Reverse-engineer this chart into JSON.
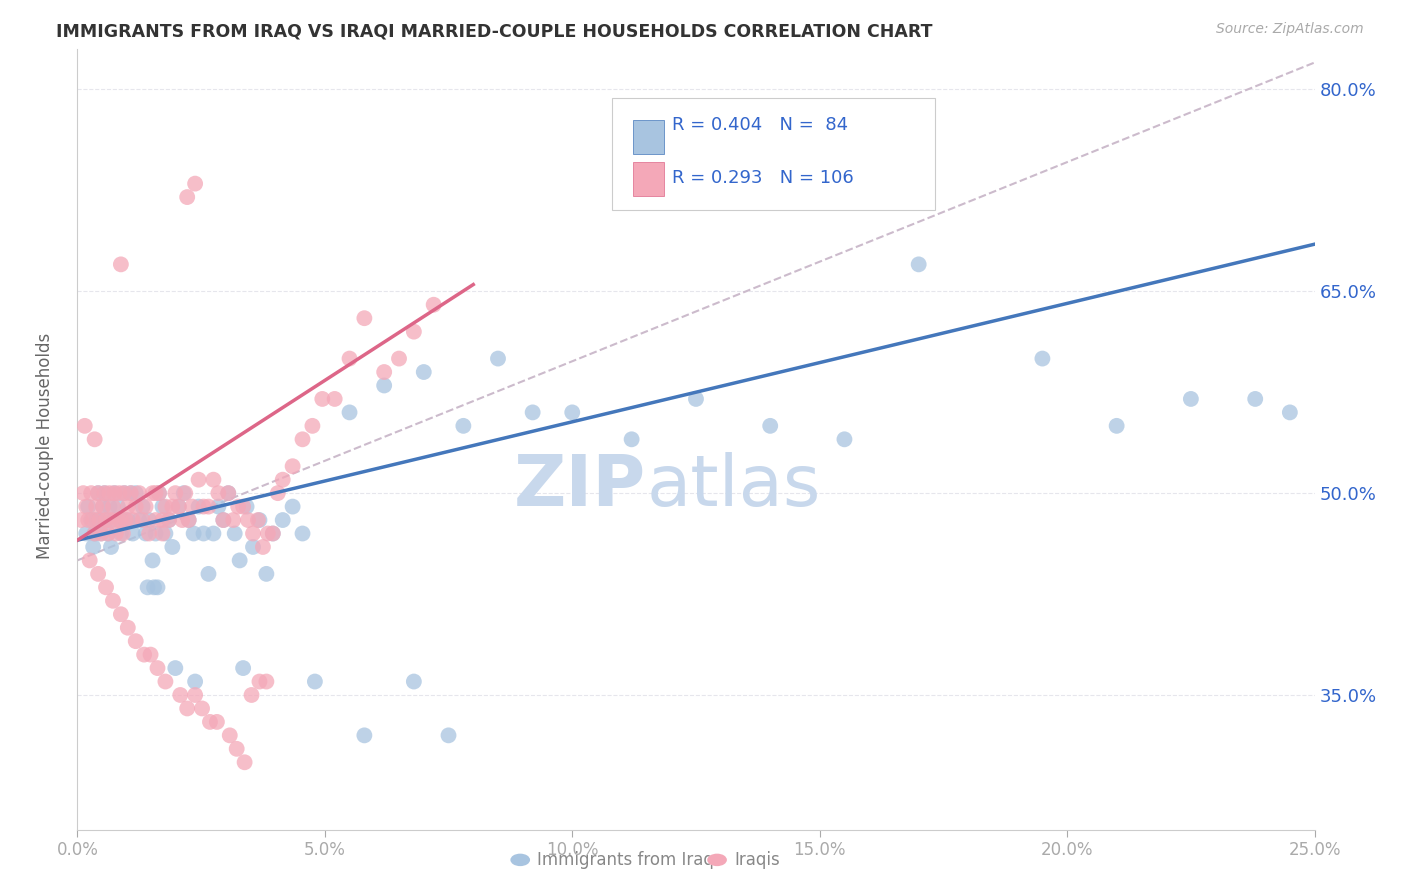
{
  "title": "IMMIGRANTS FROM IRAQ VS IRAQI MARRIED-COUPLE HOUSEHOLDS CORRELATION CHART",
  "source": "Source: ZipAtlas.com",
  "ylabel_label": "Married-couple Households",
  "xlabel_label_blue": "Immigrants from Iraq",
  "xlabel_label_pink": "Iraqis",
  "R_blue": "0.404",
  "N_blue": "84",
  "R_pink": "0.293",
  "N_pink": "106",
  "blue_color": "#a8c4e0",
  "pink_color": "#f4a8b8",
  "blue_line_color": "#4477bb",
  "pink_line_color": "#dd6688",
  "dashed_line_color": "#ccbbcc",
  "legend_text_color": "#3366cc",
  "grid_color": "#e0e0e8",
  "title_color": "#333333",
  "watermark_zip_color": "#c8d8ec",
  "watermark_atlas_color": "#c8d8ec",
  "x_min": 0.0,
  "x_max": 25.0,
  "y_min": 25.0,
  "y_max": 83.0,
  "ytick_vals": [
    80.0,
    65.0,
    50.0,
    35.0
  ],
  "xtick_vals": [
    0,
    5,
    10,
    15,
    20,
    25
  ],
  "xtick_labels": [
    "0.0%",
    "5.0%",
    "10.0%",
    "15.0%",
    "20.0%",
    "25.0%"
  ],
  "blue_line_x": [
    0,
    25
  ],
  "blue_line_y": [
    46.5,
    68.5
  ],
  "pink_line_x": [
    0,
    8.0
  ],
  "pink_line_y": [
    46.5,
    65.5
  ],
  "dash_line_x": [
    0,
    25
  ],
  "dash_line_y": [
    45,
    82
  ],
  "blue_x": [
    0.18,
    0.22,
    0.28,
    0.32,
    0.35,
    0.38,
    0.42,
    0.45,
    0.48,
    0.52,
    0.55,
    0.58,
    0.62,
    0.65,
    0.68,
    0.72,
    0.75,
    0.82,
    0.88,
    0.92,
    0.95,
    1.02,
    1.08,
    1.12,
    1.18,
    1.25,
    1.32,
    1.38,
    1.45,
    1.52,
    1.58,
    1.65,
    1.72,
    1.78,
    1.85,
    1.92,
    2.05,
    2.15,
    2.25,
    2.35,
    2.45,
    2.55,
    2.65,
    2.75,
    2.85,
    2.95,
    3.05,
    3.18,
    3.28,
    3.42,
    3.55,
    3.68,
    3.82,
    3.95,
    4.15,
    4.35,
    4.55,
    5.5,
    6.2,
    7.0,
    7.8,
    8.5,
    9.2,
    10.0,
    11.2,
    12.5,
    14.0,
    15.5,
    17.0,
    19.5,
    21.0,
    22.5,
    23.8,
    24.5,
    1.42,
    1.55,
    1.62,
    1.98,
    2.38,
    3.35,
    4.8,
    5.8,
    6.8,
    7.5
  ],
  "blue_y": [
    47,
    49,
    48,
    46,
    47,
    48,
    50,
    48,
    47,
    49,
    50,
    48,
    47,
    49,
    46,
    48,
    50,
    49,
    47,
    48,
    50,
    48,
    50,
    47,
    50,
    48,
    49,
    47,
    48,
    45,
    47,
    50,
    49,
    47,
    48,
    46,
    49,
    50,
    48,
    47,
    49,
    47,
    44,
    47,
    49,
    48,
    50,
    47,
    45,
    49,
    46,
    48,
    44,
    47,
    48,
    49,
    47,
    56,
    58,
    59,
    55,
    60,
    56,
    56,
    54,
    57,
    55,
    54,
    67,
    60,
    55,
    57,
    57,
    56,
    43,
    43,
    43,
    37,
    36,
    37,
    36,
    32,
    36,
    32
  ],
  "pink_x": [
    0.08,
    0.12,
    0.18,
    0.22,
    0.28,
    0.32,
    0.35,
    0.38,
    0.42,
    0.45,
    0.48,
    0.52,
    0.55,
    0.58,
    0.62,
    0.65,
    0.68,
    0.72,
    0.75,
    0.78,
    0.82,
    0.85,
    0.88,
    0.92,
    0.95,
    0.98,
    1.02,
    1.08,
    1.12,
    1.18,
    1.25,
    1.32,
    1.38,
    1.45,
    1.52,
    1.58,
    1.65,
    1.72,
    1.78,
    1.85,
    1.92,
    1.98,
    2.05,
    2.12,
    2.18,
    2.25,
    2.32,
    2.45,
    2.55,
    2.65,
    2.75,
    2.85,
    2.95,
    3.05,
    3.15,
    3.25,
    3.35,
    3.45,
    3.55,
    3.65,
    3.75,
    3.85,
    3.95,
    4.05,
    4.15,
    4.35,
    4.55,
    4.75,
    4.95,
    5.2,
    5.5,
    5.8,
    6.2,
    6.5,
    6.8,
    7.2,
    0.25,
    0.42,
    0.58,
    0.72,
    0.88,
    1.02,
    1.18,
    1.35,
    1.48,
    1.62,
    1.78,
    2.08,
    2.22,
    2.38,
    2.52,
    2.68,
    2.82,
    3.08,
    3.22,
    3.38,
    3.52,
    3.68,
    3.82,
    0.15,
    0.35,
    1.58,
    1.72,
    0.88,
    2.22,
    2.38
  ],
  "pink_y": [
    48,
    50,
    49,
    48,
    50,
    48,
    47,
    49,
    50,
    48,
    47,
    49,
    50,
    48,
    47,
    50,
    48,
    49,
    50,
    47,
    48,
    50,
    48,
    47,
    50,
    48,
    49,
    50,
    48,
    49,
    50,
    48,
    49,
    47,
    50,
    48,
    50,
    47,
    49,
    48,
    49,
    50,
    49,
    48,
    50,
    48,
    49,
    51,
    49,
    49,
    51,
    50,
    48,
    50,
    48,
    49,
    49,
    48,
    47,
    48,
    46,
    47,
    47,
    50,
    51,
    52,
    54,
    55,
    57,
    57,
    60,
    63,
    59,
    60,
    62,
    64,
    45,
    44,
    43,
    42,
    41,
    40,
    39,
    38,
    38,
    37,
    36,
    35,
    34,
    35,
    34,
    33,
    33,
    32,
    31,
    30,
    35,
    36,
    36,
    55,
    54,
    50,
    48,
    67,
    72,
    73
  ]
}
